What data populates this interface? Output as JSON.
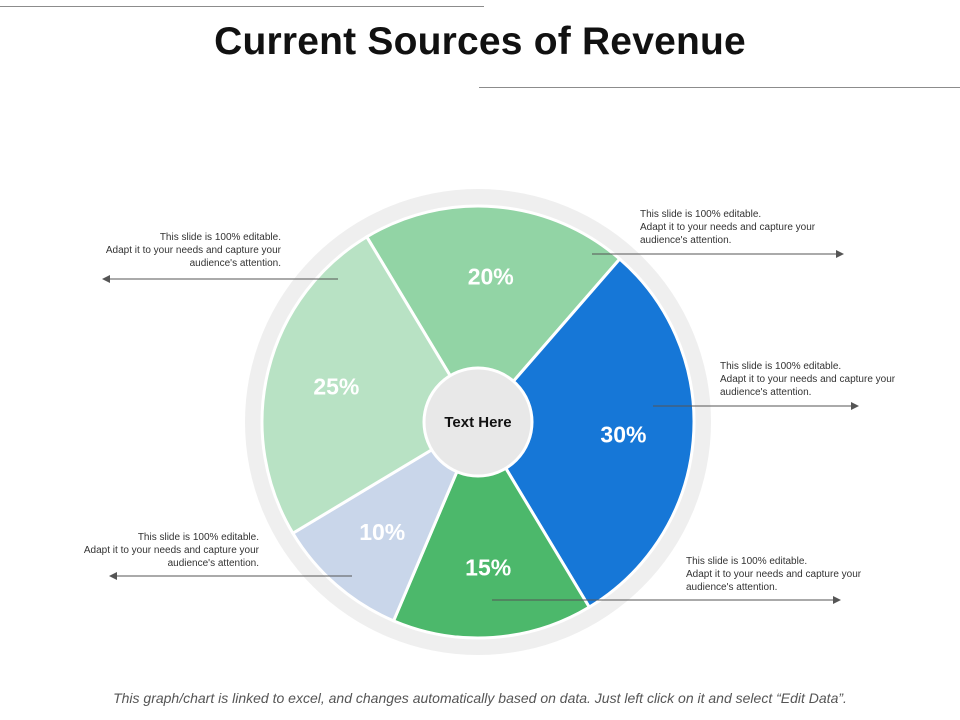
{
  "title": "Current Sources of Revenue",
  "chart_data": {
    "type": "pie",
    "variant": "donut",
    "center_label": "Text Here",
    "slices": [
      {
        "label": "20%",
        "value": 20,
        "color": "#92d4a5"
      },
      {
        "label": "30%",
        "value": 30,
        "color": "#1677d7"
      },
      {
        "label": "15%",
        "value": 15,
        "color": "#4cb86b"
      },
      {
        "label": "10%",
        "value": 10,
        "color": "#c9d6ea"
      },
      {
        "label": "25%",
        "value": 25,
        "color": "#b8e2c4"
      }
    ],
    "colors": {
      "ring": "#efefef",
      "center": "#e8e8e8",
      "arrow": "#555555"
    }
  },
  "callouts": [
    {
      "line1": "This slide is 100% editable.",
      "line2": "Adapt it to your needs and capture your",
      "line3": "audience's attention."
    },
    {
      "line1": "This slide is 100% editable.",
      "line2": "Adapt it to your needs and capture your",
      "line3": "audience's attention."
    },
    {
      "line1": "This slide is 100% editable.",
      "line2": "Adapt it to your needs and capture your",
      "line3": "audience's attention."
    },
    {
      "line1": "This slide is 100% editable.",
      "line2": "Adapt it to your needs and capture your",
      "line3": "audience's attention."
    },
    {
      "line1": "This slide is 100% editable.",
      "line2": "Adapt it to your needs and capture your",
      "line3": "audience's attention."
    }
  ],
  "footer": "This graph/chart is linked to excel, and changes automatically based on data.  Just left click on it and select “Edit Data”."
}
